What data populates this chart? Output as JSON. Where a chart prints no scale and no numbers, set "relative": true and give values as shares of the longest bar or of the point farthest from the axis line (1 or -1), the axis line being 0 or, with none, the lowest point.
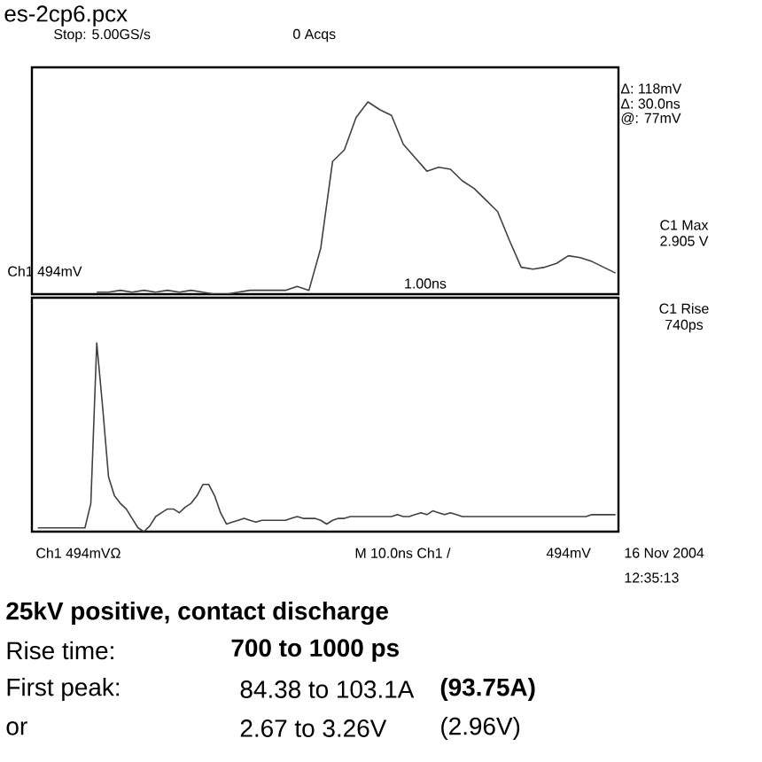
{
  "chart_data": [
    {
      "type": "line",
      "title": "es-2cp6.pcx",
      "relative": true,
      "categories": [
        null,
        null,
        null,
        null,
        null,
        null,
        null,
        null,
        null,
        null,
        null,
        null,
        null,
        null,
        null,
        null,
        null,
        null,
        null,
        null,
        null,
        null,
        null,
        null,
        null,
        null,
        null,
        null,
        null,
        null,
        null,
        null,
        null,
        null,
        null,
        null,
        null,
        null,
        null,
        null,
        null,
        null,
        null,
        null,
        null
      ],
      "series": [
        {
          "color": "#404040",
          "values": [
            0.01,
            0.01,
            0.02,
            0.01,
            0.02,
            0.01,
            0.02,
            0.01,
            0.02,
            0.01,
            0,
            0,
            0.01,
            0.02,
            0.02,
            0.02,
            0.02,
            0.04,
            0.02,
            0.24,
            0.69,
            0.75,
            0.92,
            1,
            0.96,
            0.93,
            0.78,
            0.71,
            0.64,
            0.66,
            0.65,
            0.59,
            0.55,
            0.49,
            0.43,
            0.28,
            0.14,
            0.13,
            0.14,
            0.16,
            0.2,
            0.19,
            0.17,
            0.14,
            0.11
          ]
        }
      ],
      "annotations": [
        "Stop: 5.00GS/s",
        "0 Acqs",
        "Δ: 118mV",
        "Δ: 30.0ns",
        "@: 77mV",
        "C1 Max",
        "2.905 V",
        "Ch1 494mV",
        "1.00ns"
      ]
    },
    {
      "type": "line",
      "relative": true,
      "categories": [
        null,
        null,
        null,
        null,
        null,
        null,
        null,
        null,
        null,
        null,
        null,
        null,
        null,
        null,
        null,
        null,
        null,
        null,
        null,
        null,
        null,
        null,
        null,
        null,
        null,
        null,
        null,
        null,
        null,
        null,
        null,
        null,
        null,
        null,
        null,
        null,
        null,
        null,
        null,
        null,
        null,
        null,
        null,
        null,
        null,
        null,
        null,
        null,
        null,
        null,
        null,
        null,
        null,
        null,
        null,
        null,
        null,
        null,
        null,
        null,
        null,
        null,
        null,
        null,
        null,
        null,
        null,
        null,
        null,
        null,
        null,
        null,
        null,
        null,
        null,
        null,
        null,
        null,
        null,
        null,
        null,
        null,
        null,
        null,
        null,
        null,
        null,
        null,
        null,
        null,
        null,
        null,
        null,
        null,
        null,
        null,
        null,
        null,
        null
      ],
      "series": [
        {
          "color": "#404040",
          "values": [
            0.02,
            0.02,
            0.02,
            0.02,
            0.02,
            0.02,
            0.02,
            0.02,
            0.02,
            0.15,
            1,
            0.66,
            0.29,
            0.19,
            0.15,
            0.12,
            0.07,
            0.02,
            0,
            0.03,
            0.08,
            0.1,
            0.12,
            0.12,
            0.1,
            0.13,
            0.15,
            0.19,
            0.25,
            0.25,
            0.19,
            0.1,
            0.04,
            0.05,
            0.06,
            0.07,
            0.06,
            0.05,
            0.06,
            0.06,
            0.06,
            0.06,
            0.06,
            0.07,
            0.08,
            0.07,
            0.07,
            0.07,
            0.06,
            0.04,
            0.06,
            0.07,
            0.07,
            0.08,
            0.08,
            0.08,
            0.08,
            0.08,
            0.08,
            0.08,
            0.08,
            0.09,
            0.08,
            0.08,
            0.09,
            0.1,
            0.09,
            0.11,
            0.1,
            0.09,
            0.1,
            0.09,
            0.08,
            0.08,
            0.08,
            0.08,
            0.08,
            0.08,
            0.08,
            0.08,
            0.08,
            0.08,
            0.08,
            0.08,
            0.08,
            0.08,
            0.08,
            0.08,
            0.08,
            0.08,
            0.08,
            0.08,
            0.08,
            0.08,
            0.09,
            0.09,
            0.09,
            0.09,
            0.09
          ]
        }
      ],
      "annotations": [
        "C1 Rise",
        "740ps",
        "Ch1 494mVΩ",
        "M 10.0ns  Ch1 /",
        "494mV",
        "16 Nov 2004",
        "12:35:13",
        "25kV positive, contact discharge",
        "Rise time:",
        "700 to 1000 ps",
        "First peak:",
        "84.38 to 103.1A",
        "(93.75A)",
        "or",
        "2.67 to 3.26V",
        "(2.96V)"
      ]
    }
  ]
}
